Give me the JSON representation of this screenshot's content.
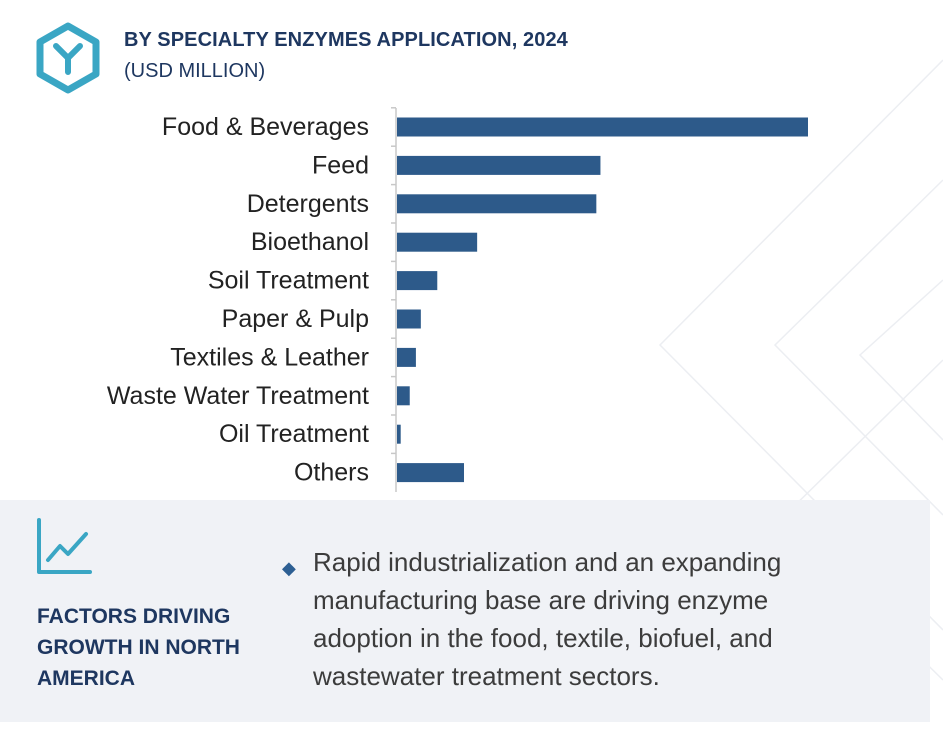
{
  "header": {
    "title": "BY SPECIALTY ENZYMES APPLICATION, 2024",
    "subtitle": "(USD MILLION)",
    "logo_icon": "hexagon-y-logo-icon"
  },
  "colors": {
    "bar": "#2d5a8a",
    "title": "#1e3760",
    "accent": "#3aa6c4",
    "panel_bg": "#f0f2f6"
  },
  "chart_data": {
    "type": "bar",
    "orientation": "horizontal",
    "title": "BY SPECIALTY ENZYMES APPLICATION, 2024",
    "subtitle": "(USD MILLION)",
    "categories": [
      "Food & Beverages",
      "Feed",
      "Detergents",
      "Bioethanol",
      "Soil Treatment",
      "Paper & Pulp",
      "Textiles & Leather",
      "Waste Water Treatment",
      "Oil Treatment",
      "Others"
    ],
    "values": [
      100,
      49.5,
      48.5,
      19.5,
      9.8,
      5.8,
      4.6,
      3.1,
      0.9,
      16.3
    ],
    "xlim": [
      0,
      100
    ],
    "grid": false,
    "legend": "none",
    "value_labels": false
  },
  "panel": {
    "icon": "trend-chart-icon",
    "heading": "FACTORS DRIVING GROWTH IN NORTH AMERICA",
    "bullet_icon": "diamond-bullet-icon",
    "bullet_text": "Rapid industrialization and an expanding manufacturing base are driving enzyme adoption in the food, textile, biofuel, and wastewater treatment sectors."
  }
}
